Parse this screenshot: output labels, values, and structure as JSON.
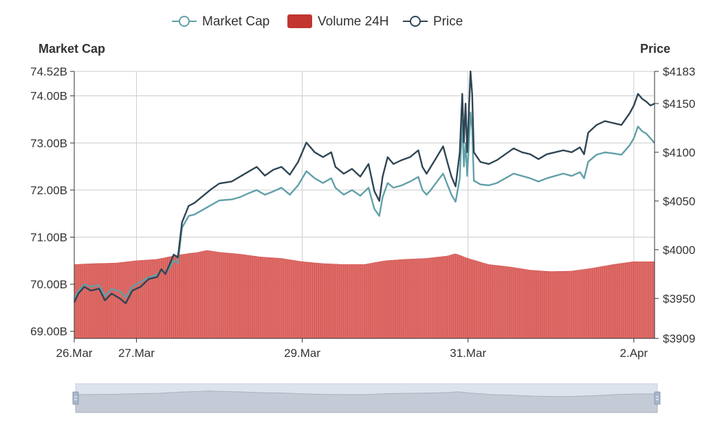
{
  "colors": {
    "market_cap": "#61a0a8",
    "volume": "#c23531",
    "volume_fill": "#e06d69",
    "price": "#2f4554",
    "grid": "#cccccc",
    "axis": "#333333",
    "zoom_bg": "#dde3ec",
    "zoom_handle": "#a7b7cc"
  },
  "chart_data": {
    "type": "line",
    "legend": {
      "placement": "top-center",
      "items": [
        {
          "name": "Market Cap",
          "shape": "line-circle"
        },
        {
          "name": "Volume 24H",
          "shape": "rect"
        },
        {
          "name": "Price",
          "shape": "line-circle"
        }
      ]
    },
    "y_left": {
      "title": "Market Cap",
      "min": 68.85,
      "max": 74.52,
      "ticks": [
        {
          "value": 69.0,
          "label": "69.00B"
        },
        {
          "value": 70.0,
          "label": "70.00B"
        },
        {
          "value": 71.0,
          "label": "71.00B"
        },
        {
          "value": 72.0,
          "label": "72.00B"
        },
        {
          "value": 73.0,
          "label": "73.00B"
        },
        {
          "value": 74.0,
          "label": "74.00B"
        },
        {
          "value": 74.52,
          "label": "74.52B"
        }
      ]
    },
    "y_right": {
      "title": "Price",
      "min": 3909,
      "max": 4183,
      "ticks": [
        {
          "value": 3909,
          "label": "$3909"
        },
        {
          "value": 3950,
          "label": "$3950"
        },
        {
          "value": 4000,
          "label": "$4000"
        },
        {
          "value": 4050,
          "label": "$4050"
        },
        {
          "value": 4100,
          "label": "$4100"
        },
        {
          "value": 4150,
          "label": "$4150"
        },
        {
          "value": 4183,
          "label": "$4183"
        }
      ]
    },
    "x_axis": {
      "min": 0,
      "max": 7.0,
      "ticks": [
        {
          "value": 0,
          "label": "26.Mar"
        },
        {
          "value": 0.75,
          "label": "27.Mar"
        },
        {
          "value": 2.75,
          "label": "29.Mar"
        },
        {
          "value": 4.75,
          "label": "31.Mar"
        },
        {
          "value": 6.75,
          "label": "2.Apr"
        }
      ]
    },
    "series": [
      {
        "name": "Price",
        "axis": "right",
        "points": [
          [
            0.0,
            3946
          ],
          [
            0.05,
            3955
          ],
          [
            0.12,
            3962
          ],
          [
            0.2,
            3958
          ],
          [
            0.3,
            3960
          ],
          [
            0.37,
            3948
          ],
          [
            0.45,
            3955
          ],
          [
            0.55,
            3950
          ],
          [
            0.62,
            3945
          ],
          [
            0.7,
            3958
          ],
          [
            0.8,
            3962
          ],
          [
            0.9,
            3970
          ],
          [
            1.0,
            3972
          ],
          [
            1.05,
            3980
          ],
          [
            1.1,
            3975
          ],
          [
            1.15,
            3985
          ],
          [
            1.2,
            3995
          ],
          [
            1.25,
            3992
          ],
          [
            1.3,
            4028
          ],
          [
            1.38,
            4045
          ],
          [
            1.45,
            4048
          ],
          [
            1.55,
            4055
          ],
          [
            1.65,
            4062
          ],
          [
            1.75,
            4068
          ],
          [
            1.9,
            4070
          ],
          [
            2.0,
            4075
          ],
          [
            2.1,
            4080
          ],
          [
            2.2,
            4085
          ],
          [
            2.3,
            4076
          ],
          [
            2.4,
            4082
          ],
          [
            2.5,
            4085
          ],
          [
            2.6,
            4077
          ],
          [
            2.7,
            4090
          ],
          [
            2.75,
            4100
          ],
          [
            2.8,
            4110
          ],
          [
            2.9,
            4100
          ],
          [
            3.0,
            4095
          ],
          [
            3.1,
            4100
          ],
          [
            3.15,
            4085
          ],
          [
            3.25,
            4078
          ],
          [
            3.35,
            4083
          ],
          [
            3.45,
            4075
          ],
          [
            3.55,
            4088
          ],
          [
            3.62,
            4060
          ],
          [
            3.68,
            4050
          ],
          [
            3.72,
            4075
          ],
          [
            3.78,
            4095
          ],
          [
            3.85,
            4088
          ],
          [
            3.95,
            4092
          ],
          [
            4.05,
            4095
          ],
          [
            4.15,
            4102
          ],
          [
            4.2,
            4085
          ],
          [
            4.25,
            4078
          ],
          [
            4.3,
            4085
          ],
          [
            4.35,
            4092
          ],
          [
            4.45,
            4106
          ],
          [
            4.5,
            4090
          ],
          [
            4.55,
            4075
          ],
          [
            4.6,
            4065
          ],
          [
            4.65,
            4100
          ],
          [
            4.68,
            4160
          ],
          [
            4.7,
            4110
          ],
          [
            4.72,
            4150
          ],
          [
            4.74,
            4100
          ],
          [
            4.78,
            4183
          ],
          [
            4.8,
            4160
          ],
          [
            4.82,
            4100
          ],
          [
            4.9,
            4090
          ],
          [
            5.0,
            4088
          ],
          [
            5.1,
            4092
          ],
          [
            5.2,
            4098
          ],
          [
            5.3,
            4104
          ],
          [
            5.4,
            4100
          ],
          [
            5.5,
            4098
          ],
          [
            5.6,
            4093
          ],
          [
            5.7,
            4098
          ],
          [
            5.8,
            4100
          ],
          [
            5.9,
            4102
          ],
          [
            6.0,
            4100
          ],
          [
            6.1,
            4105
          ],
          [
            6.15,
            4098
          ],
          [
            6.2,
            4120
          ],
          [
            6.3,
            4128
          ],
          [
            6.4,
            4132
          ],
          [
            6.5,
            4130
          ],
          [
            6.6,
            4128
          ],
          [
            6.7,
            4140
          ],
          [
            6.75,
            4148
          ],
          [
            6.8,
            4160
          ],
          [
            6.85,
            4155
          ],
          [
            6.9,
            4152
          ],
          [
            6.95,
            4148
          ],
          [
            7.0,
            4150
          ]
        ]
      },
      {
        "name": "Market Cap",
        "axis": "left",
        "points": [
          [
            0.0,
            69.7
          ],
          [
            0.05,
            69.85
          ],
          [
            0.12,
            70.0
          ],
          [
            0.2,
            69.95
          ],
          [
            0.3,
            69.98
          ],
          [
            0.37,
            69.75
          ],
          [
            0.45,
            69.9
          ],
          [
            0.55,
            69.85
          ],
          [
            0.62,
            69.72
          ],
          [
            0.7,
            69.95
          ],
          [
            0.8,
            70.05
          ],
          [
            0.9,
            70.15
          ],
          [
            1.0,
            70.2
          ],
          [
            1.05,
            70.3
          ],
          [
            1.1,
            70.22
          ],
          [
            1.15,
            70.35
          ],
          [
            1.2,
            70.5
          ],
          [
            1.25,
            70.45
          ],
          [
            1.3,
            71.2
          ],
          [
            1.38,
            71.45
          ],
          [
            1.45,
            71.48
          ],
          [
            1.55,
            71.58
          ],
          [
            1.65,
            71.68
          ],
          [
            1.75,
            71.78
          ],
          [
            1.9,
            71.8
          ],
          [
            2.0,
            71.85
          ],
          [
            2.1,
            71.93
          ],
          [
            2.2,
            72.0
          ],
          [
            2.3,
            71.9
          ],
          [
            2.4,
            71.97
          ],
          [
            2.5,
            72.05
          ],
          [
            2.6,
            71.9
          ],
          [
            2.7,
            72.1
          ],
          [
            2.75,
            72.25
          ],
          [
            2.8,
            72.4
          ],
          [
            2.9,
            72.25
          ],
          [
            3.0,
            72.15
          ],
          [
            3.1,
            72.25
          ],
          [
            3.15,
            72.05
          ],
          [
            3.25,
            71.9
          ],
          [
            3.35,
            72.0
          ],
          [
            3.45,
            71.88
          ],
          [
            3.55,
            72.05
          ],
          [
            3.62,
            71.6
          ],
          [
            3.68,
            71.45
          ],
          [
            3.72,
            71.85
          ],
          [
            3.78,
            72.15
          ],
          [
            3.85,
            72.05
          ],
          [
            3.95,
            72.1
          ],
          [
            4.05,
            72.18
          ],
          [
            4.15,
            72.28
          ],
          [
            4.2,
            72.0
          ],
          [
            4.25,
            71.9
          ],
          [
            4.3,
            72.0
          ],
          [
            4.35,
            72.12
          ],
          [
            4.45,
            72.35
          ],
          [
            4.5,
            72.12
          ],
          [
            4.55,
            71.9
          ],
          [
            4.6,
            71.75
          ],
          [
            4.65,
            72.25
          ],
          [
            4.68,
            73.5
          ],
          [
            4.7,
            72.5
          ],
          [
            4.72,
            73.0
          ],
          [
            4.74,
            72.3
          ],
          [
            4.78,
            73.65
          ],
          [
            4.8,
            73.3
          ],
          [
            4.82,
            72.2
          ],
          [
            4.9,
            72.12
          ],
          [
            5.0,
            72.1
          ],
          [
            5.1,
            72.15
          ],
          [
            5.2,
            72.25
          ],
          [
            5.3,
            72.35
          ],
          [
            5.4,
            72.3
          ],
          [
            5.5,
            72.25
          ],
          [
            5.6,
            72.18
          ],
          [
            5.7,
            72.25
          ],
          [
            5.8,
            72.3
          ],
          [
            5.9,
            72.35
          ],
          [
            6.0,
            72.3
          ],
          [
            6.1,
            72.38
          ],
          [
            6.15,
            72.25
          ],
          [
            6.2,
            72.6
          ],
          [
            6.3,
            72.75
          ],
          [
            6.4,
            72.8
          ],
          [
            6.5,
            72.78
          ],
          [
            6.6,
            72.75
          ],
          [
            6.7,
            72.95
          ],
          [
            6.75,
            73.1
          ],
          [
            6.8,
            73.35
          ],
          [
            6.85,
            73.25
          ],
          [
            6.9,
            73.2
          ],
          [
            6.95,
            73.1
          ],
          [
            7.0,
            73.0
          ]
        ]
      },
      {
        "name": "Volume 24H",
        "axis": "left",
        "type": "bar",
        "points": [
          [
            0.0,
            70.42
          ],
          [
            0.25,
            70.44
          ],
          [
            0.5,
            70.45
          ],
          [
            0.75,
            70.5
          ],
          [
            1.0,
            70.53
          ],
          [
            1.25,
            70.62
          ],
          [
            1.5,
            70.68
          ],
          [
            1.6,
            70.72
          ],
          [
            1.75,
            70.68
          ],
          [
            2.0,
            70.64
          ],
          [
            2.25,
            70.58
          ],
          [
            2.5,
            70.55
          ],
          [
            2.75,
            70.48
          ],
          [
            3.0,
            70.44
          ],
          [
            3.25,
            70.42
          ],
          [
            3.5,
            70.42
          ],
          [
            3.75,
            70.5
          ],
          [
            4.0,
            70.53
          ],
          [
            4.25,
            70.55
          ],
          [
            4.5,
            70.6
          ],
          [
            4.6,
            70.65
          ],
          [
            4.75,
            70.55
          ],
          [
            5.0,
            70.42
          ],
          [
            5.25,
            70.37
          ],
          [
            5.5,
            70.3
          ],
          [
            5.75,
            70.27
          ],
          [
            6.0,
            70.28
          ],
          [
            6.25,
            70.34
          ],
          [
            6.5,
            70.42
          ],
          [
            6.75,
            70.48
          ],
          [
            7.0,
            70.48
          ]
        ]
      }
    ],
    "data_zoom": {
      "start": 0,
      "end": 100
    }
  }
}
